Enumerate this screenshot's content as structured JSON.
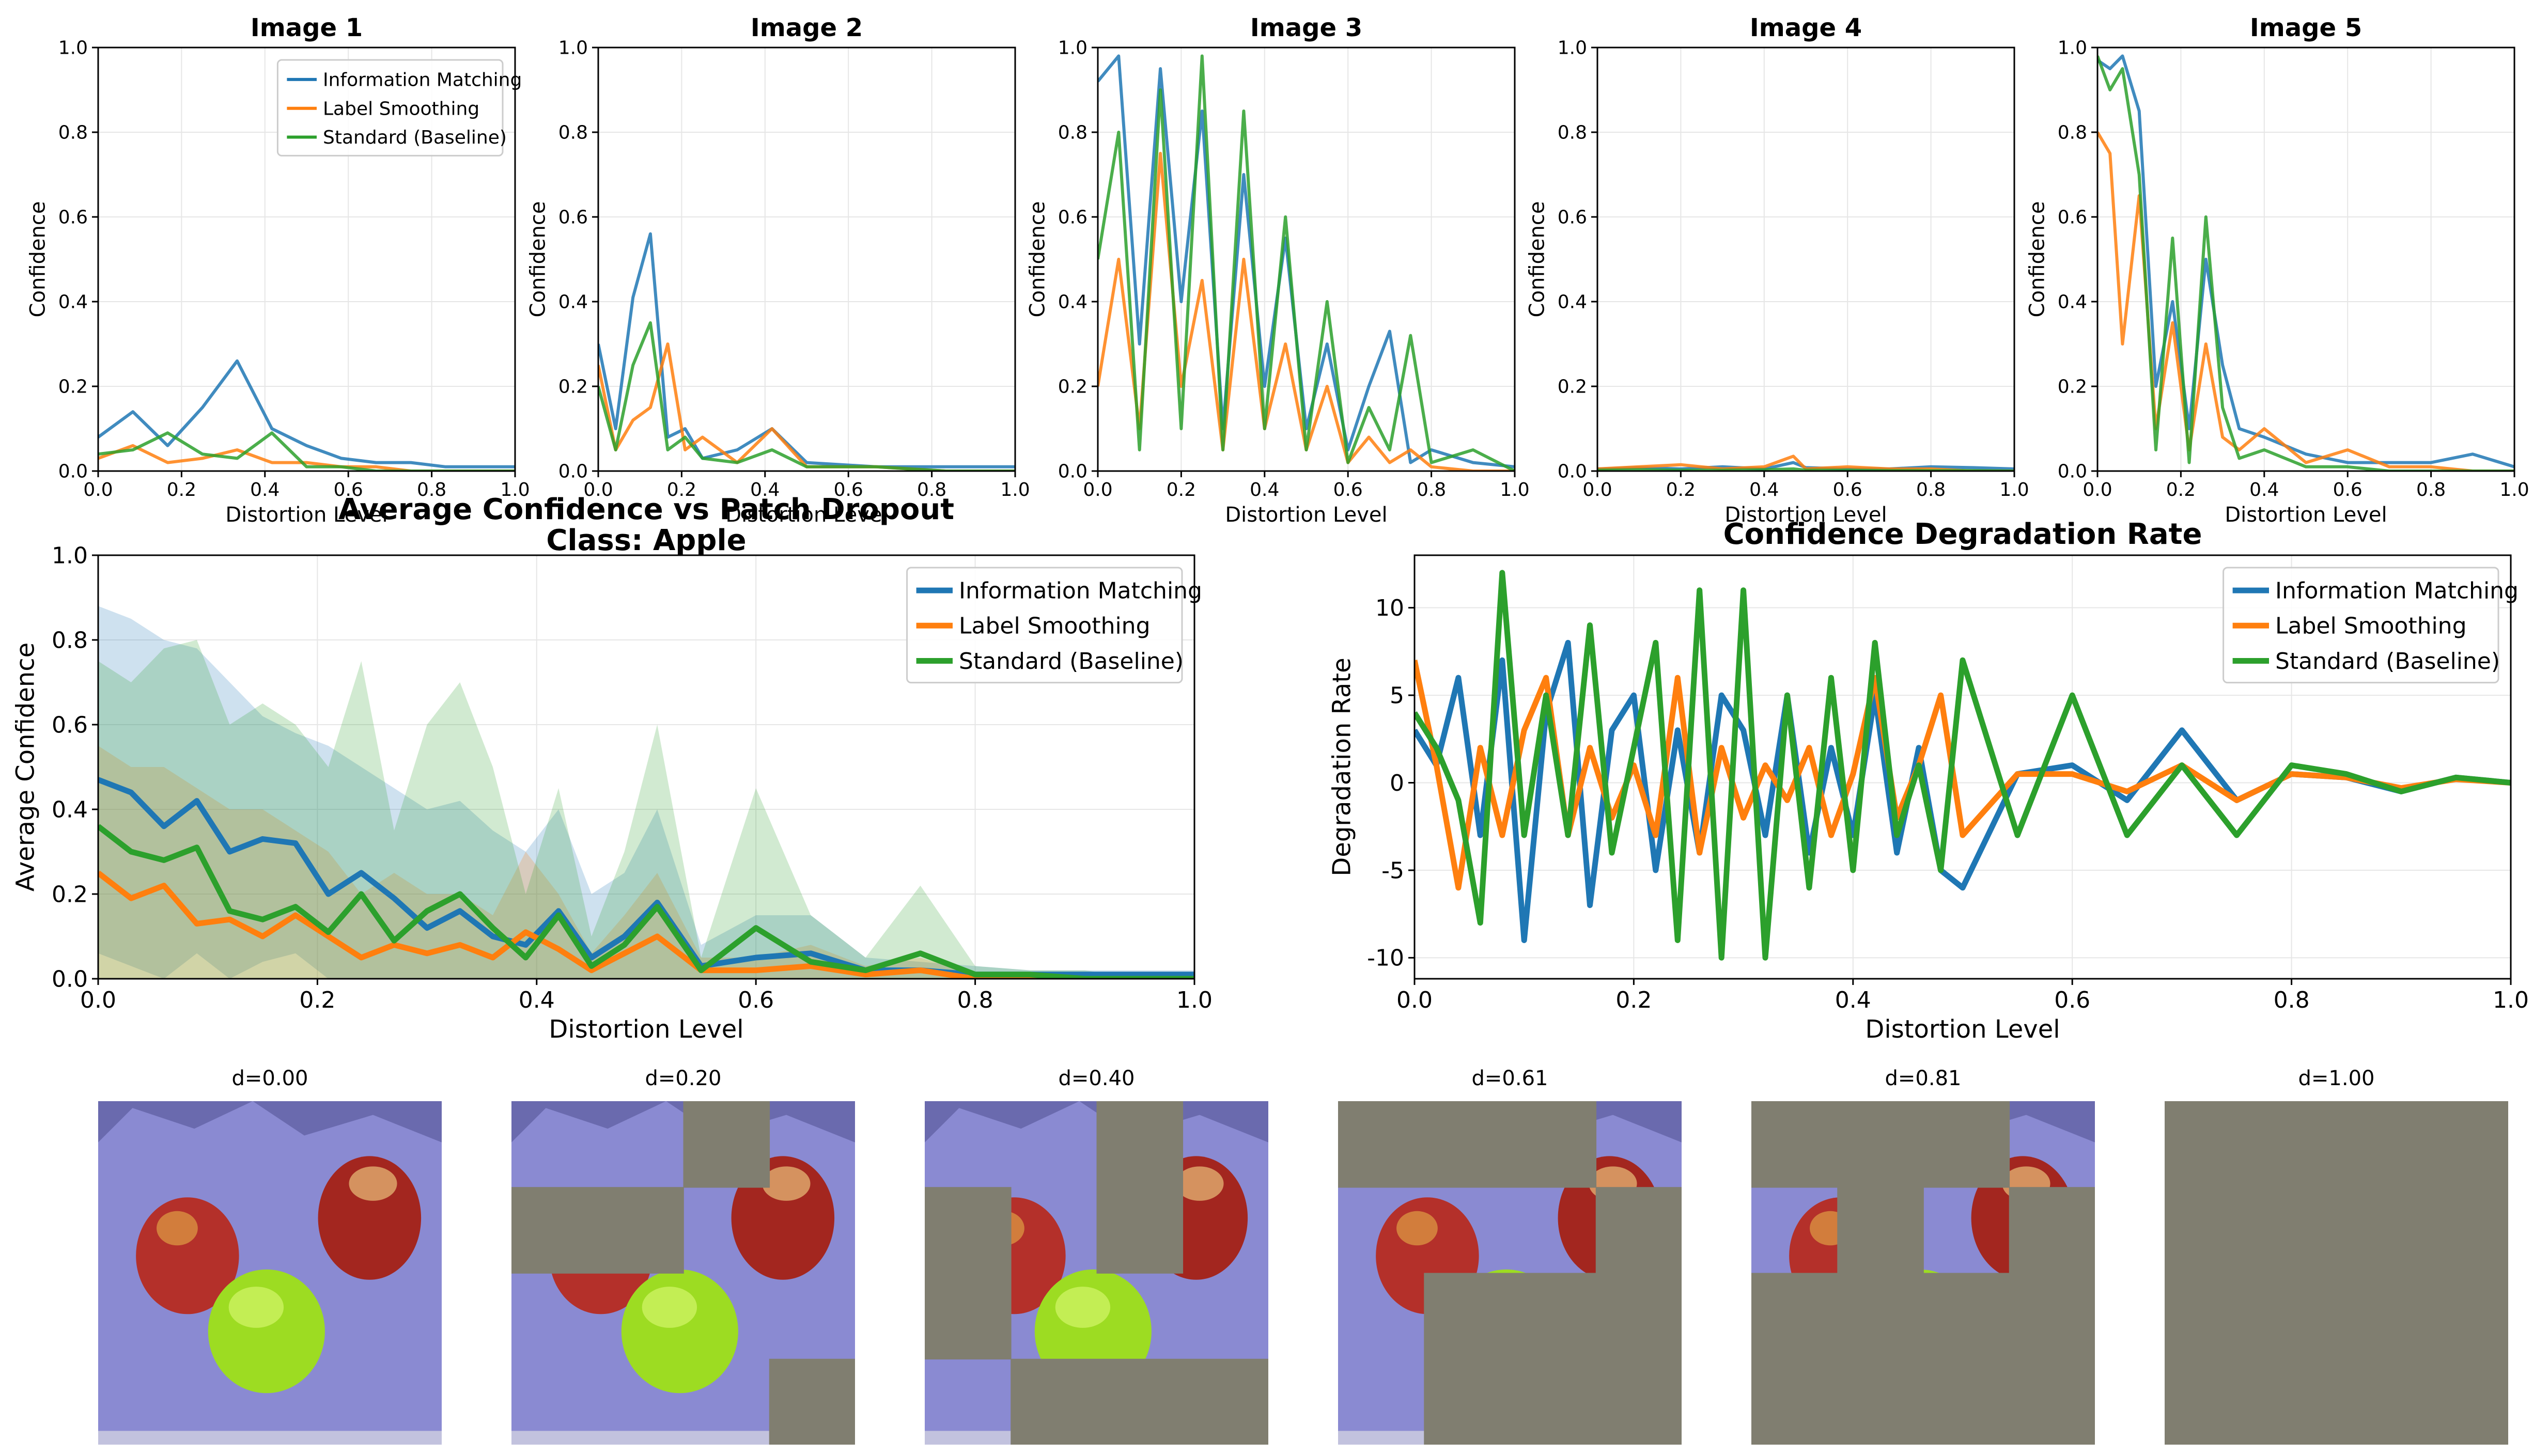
{
  "colors": {
    "information_matching": "#1f77b4",
    "label_smoothing": "#ff7f0e",
    "standard": "#2ca02c",
    "grid": "#e6e6e6",
    "mask": "#807e70",
    "background_cloth": "#8a8ad2",
    "apple_red": "#b4302a",
    "apple_green": "#9ddc22"
  },
  "legend_labels": [
    "Information Matching",
    "Label Smoothing",
    "Standard (Baseline)"
  ],
  "chart_data": [
    {
      "id": "image-1",
      "type": "line",
      "title": "Image 1",
      "xlabel": "Distortion Level",
      "ylabel": "Confidence",
      "xlim": [
        0,
        1
      ],
      "ylim": [
        0,
        1
      ],
      "xticks": [
        "0.0",
        "0.2",
        "0.4",
        "0.6",
        "0.8",
        "1.0"
      ],
      "yticks": [
        "0.0",
        "0.2",
        "0.4",
        "0.6",
        "0.8",
        "1.0"
      ],
      "grid": true,
      "legend": "top-right",
      "x": [
        0,
        0.0833,
        0.1667,
        0.25,
        0.3333,
        0.4167,
        0.5,
        0.5833,
        0.6667,
        0.75,
        0.8333,
        0.9167,
        1.0
      ],
      "series": [
        {
          "name": "Information Matching",
          "values": [
            0.08,
            0.14,
            0.06,
            0.15,
            0.26,
            0.1,
            0.06,
            0.03,
            0.02,
            0.02,
            0.01,
            0.01,
            0.01
          ]
        },
        {
          "name": "Label Smoothing",
          "values": [
            0.03,
            0.06,
            0.02,
            0.03,
            0.05,
            0.02,
            0.02,
            0.01,
            0.01,
            0.0,
            0.0,
            0.0,
            0.0
          ]
        },
        {
          "name": "Standard (Baseline)",
          "values": [
            0.04,
            0.05,
            0.09,
            0.04,
            0.03,
            0.09,
            0.01,
            0.01,
            0.0,
            0.0,
            0.0,
            0.0,
            0.0
          ]
        }
      ]
    },
    {
      "id": "image-2",
      "type": "line",
      "title": "Image 2",
      "xlabel": "Distortion Level",
      "ylabel": "Confidence",
      "xlim": [
        0,
        1
      ],
      "ylim": [
        0,
        1
      ],
      "xticks": [
        "0.0",
        "0.2",
        "0.4",
        "0.6",
        "0.8",
        "1.0"
      ],
      "yticks": [
        "0.0",
        "0.2",
        "0.4",
        "0.6",
        "0.8",
        "1.0"
      ],
      "grid": true,
      "x": [
        0,
        0.0417,
        0.0833,
        0.125,
        0.1667,
        0.2083,
        0.25,
        0.3333,
        0.4167,
        0.5,
        0.6667,
        0.8333,
        1.0
      ],
      "series": [
        {
          "name": "Information Matching",
          "values": [
            0.3,
            0.1,
            0.41,
            0.56,
            0.08,
            0.1,
            0.03,
            0.05,
            0.1,
            0.02,
            0.01,
            0.01,
            0.01
          ]
        },
        {
          "name": "Label Smoothing",
          "values": [
            0.25,
            0.05,
            0.12,
            0.15,
            0.3,
            0.05,
            0.08,
            0.02,
            0.1,
            0.01,
            0.01,
            0.0,
            0.0
          ]
        },
        {
          "name": "Standard (Baseline)",
          "values": [
            0.2,
            0.05,
            0.25,
            0.35,
            0.05,
            0.08,
            0.03,
            0.02,
            0.05,
            0.01,
            0.01,
            0.0,
            0.0
          ]
        }
      ]
    },
    {
      "id": "image-3",
      "type": "line",
      "title": "Image 3",
      "xlabel": "Distortion Level",
      "ylabel": "Confidence",
      "xlim": [
        0,
        1
      ],
      "ylim": [
        0,
        1
      ],
      "xticks": [
        "0.0",
        "0.2",
        "0.4",
        "0.6",
        "0.8",
        "1.0"
      ],
      "yticks": [
        "0.0",
        "0.2",
        "0.4",
        "0.6",
        "0.8",
        "1.0"
      ],
      "grid": true,
      "x": [
        0,
        0.05,
        0.1,
        0.15,
        0.2,
        0.25,
        0.3,
        0.35,
        0.4,
        0.45,
        0.5,
        0.55,
        0.6,
        0.65,
        0.7,
        0.75,
        0.8,
        0.9,
        1.0
      ],
      "series": [
        {
          "name": "Information Matching",
          "values": [
            0.92,
            0.98,
            0.3,
            0.95,
            0.4,
            0.85,
            0.1,
            0.7,
            0.2,
            0.55,
            0.1,
            0.3,
            0.05,
            0.2,
            0.33,
            0.02,
            0.05,
            0.02,
            0.01
          ]
        },
        {
          "name": "Label Smoothing",
          "values": [
            0.2,
            0.5,
            0.1,
            0.75,
            0.2,
            0.45,
            0.05,
            0.5,
            0.1,
            0.3,
            0.05,
            0.2,
            0.02,
            0.08,
            0.02,
            0.05,
            0.01,
            0.0,
            0.0
          ]
        },
        {
          "name": "Standard (Baseline)",
          "values": [
            0.5,
            0.8,
            0.05,
            0.9,
            0.1,
            0.98,
            0.05,
            0.85,
            0.1,
            0.6,
            0.05,
            0.4,
            0.02,
            0.15,
            0.05,
            0.32,
            0.02,
            0.05,
            0.0
          ]
        }
      ]
    },
    {
      "id": "image-4",
      "type": "line",
      "title": "Image 4",
      "xlabel": "Distortion Level",
      "ylabel": "Confidence",
      "xlim": [
        0,
        1
      ],
      "ylim": [
        0,
        1
      ],
      "xticks": [
        "0.0",
        "0.2",
        "0.4",
        "0.6",
        "0.8",
        "1.0"
      ],
      "yticks": [
        "0.0",
        "0.2",
        "0.4",
        "0.6",
        "0.8",
        "1.0"
      ],
      "grid": true,
      "x": [
        0,
        0.1,
        0.2,
        0.3,
        0.4,
        0.47,
        0.5,
        0.6,
        0.7,
        0.8,
        0.9,
        1.0
      ],
      "series": [
        {
          "name": "Information Matching",
          "values": [
            0.005,
            0.008,
            0.005,
            0.01,
            0.005,
            0.02,
            0.008,
            0.005,
            0.005,
            0.01,
            0.008,
            0.005
          ]
        },
        {
          "name": "Label Smoothing",
          "values": [
            0.005,
            0.01,
            0.015,
            0.005,
            0.01,
            0.035,
            0.005,
            0.01,
            0.005,
            0.005,
            0.0,
            0.0
          ]
        },
        {
          "name": "Standard (Baseline)",
          "values": [
            0.002,
            0.003,
            0.002,
            0.002,
            0.003,
            0.005,
            0.002,
            0.002,
            0.001,
            0.001,
            0.001,
            0.0
          ]
        }
      ]
    },
    {
      "id": "image-5",
      "type": "line",
      "title": "Image 5",
      "xlabel": "Distortion Level",
      "ylabel": "Confidence",
      "xlim": [
        0,
        1
      ],
      "ylim": [
        0,
        1
      ],
      "xticks": [
        "0.0",
        "0.2",
        "0.4",
        "0.6",
        "0.8",
        "1.0"
      ],
      "yticks": [
        "0.0",
        "0.2",
        "0.4",
        "0.6",
        "0.8",
        "1.0"
      ],
      "grid": true,
      "x": [
        0,
        0.03,
        0.06,
        0.1,
        0.14,
        0.18,
        0.22,
        0.26,
        0.3,
        0.34,
        0.4,
        0.5,
        0.6,
        0.7,
        0.8,
        0.9,
        1.0
      ],
      "series": [
        {
          "name": "Information Matching",
          "values": [
            0.97,
            0.95,
            0.98,
            0.85,
            0.2,
            0.4,
            0.1,
            0.5,
            0.25,
            0.1,
            0.08,
            0.04,
            0.02,
            0.02,
            0.02,
            0.04,
            0.01
          ]
        },
        {
          "name": "Label Smoothing",
          "values": [
            0.8,
            0.75,
            0.3,
            0.65,
            0.1,
            0.35,
            0.05,
            0.3,
            0.08,
            0.05,
            0.1,
            0.02,
            0.05,
            0.01,
            0.01,
            0.0,
            0.0
          ]
        },
        {
          "name": "Standard (Baseline)",
          "values": [
            0.98,
            0.9,
            0.95,
            0.7,
            0.05,
            0.55,
            0.02,
            0.6,
            0.15,
            0.03,
            0.05,
            0.01,
            0.01,
            0.0,
            0.0,
            0.0,
            0.0
          ]
        }
      ]
    },
    {
      "id": "average-confidence",
      "type": "area",
      "title": "Average Confidence vs Patch Dropout",
      "subtitle": "Class: Apple",
      "xlabel": "Distortion Level",
      "ylabel": "Average Confidence",
      "xlim": [
        0,
        1
      ],
      "ylim": [
        0,
        1
      ],
      "xticks": [
        "0.0",
        "0.2",
        "0.4",
        "0.6",
        "0.8",
        "1.0"
      ],
      "yticks": [
        "0.0",
        "0.2",
        "0.4",
        "0.6",
        "0.8",
        "1.0"
      ],
      "grid": true,
      "legend": "top-right",
      "x": [
        0,
        0.03,
        0.06,
        0.09,
        0.12,
        0.15,
        0.18,
        0.21,
        0.24,
        0.27,
        0.3,
        0.33,
        0.36,
        0.39,
        0.42,
        0.45,
        0.48,
        0.51,
        0.55,
        0.6,
        0.65,
        0.7,
        0.75,
        0.8,
        0.85,
        0.9,
        0.95,
        1.0
      ],
      "series": [
        {
          "name": "Information Matching",
          "values": [
            0.47,
            0.44,
            0.36,
            0.42,
            0.3,
            0.33,
            0.32,
            0.2,
            0.25,
            0.19,
            0.12,
            0.16,
            0.1,
            0.08,
            0.16,
            0.05,
            0.1,
            0.18,
            0.03,
            0.05,
            0.06,
            0.02,
            0.02,
            0.01,
            0.01,
            0.01,
            0.01,
            0.01
          ],
          "upper": [
            0.88,
            0.85,
            0.8,
            0.78,
            0.7,
            0.62,
            0.58,
            0.55,
            0.5,
            0.45,
            0.4,
            0.42,
            0.35,
            0.3,
            0.4,
            0.2,
            0.25,
            0.4,
            0.08,
            0.15,
            0.15,
            0.05,
            0.04,
            0.03,
            0.02,
            0.02,
            0.02,
            0.02
          ],
          "lower": [
            0.06,
            0.03,
            0.0,
            0.06,
            0.0,
            0.04,
            0.06,
            0.0,
            0.0,
            0.0,
            0.0,
            0.0,
            0.0,
            0.0,
            0.0,
            0.0,
            0.0,
            0.0,
            0.0,
            0.0,
            0.0,
            0.0,
            0.0,
            0.0,
            0.0,
            0.0,
            0.0,
            0.0
          ]
        },
        {
          "name": "Label Smoothing",
          "values": [
            0.25,
            0.19,
            0.22,
            0.13,
            0.14,
            0.1,
            0.15,
            0.1,
            0.05,
            0.08,
            0.06,
            0.08,
            0.05,
            0.11,
            0.07,
            0.02,
            0.06,
            0.1,
            0.02,
            0.02,
            0.03,
            0.01,
            0.02,
            0.0,
            0.0,
            0.0,
            0.0,
            0.0
          ],
          "upper": [
            0.55,
            0.5,
            0.5,
            0.45,
            0.4,
            0.4,
            0.35,
            0.3,
            0.2,
            0.25,
            0.2,
            0.2,
            0.15,
            0.3,
            0.2,
            0.06,
            0.15,
            0.25,
            0.05,
            0.05,
            0.08,
            0.03,
            0.05,
            0.01,
            0.01,
            0.0,
            0.0,
            0.0
          ],
          "lower": [
            0.0,
            0.0,
            0.0,
            0.0,
            0.0,
            0.0,
            0.0,
            0.0,
            0.0,
            0.0,
            0.0,
            0.0,
            0.0,
            0.0,
            0.0,
            0.0,
            0.0,
            0.0,
            0.0,
            0.0,
            0.0,
            0.0,
            0.0,
            0.0,
            0.0,
            0.0,
            0.0,
            0.0
          ]
        },
        {
          "name": "Standard (Baseline)",
          "values": [
            0.36,
            0.3,
            0.28,
            0.31,
            0.16,
            0.14,
            0.17,
            0.11,
            0.2,
            0.09,
            0.16,
            0.2,
            0.12,
            0.05,
            0.15,
            0.03,
            0.08,
            0.17,
            0.02,
            0.12,
            0.04,
            0.02,
            0.06,
            0.01,
            0.01,
            0.0,
            0.0,
            0.0
          ],
          "upper": [
            0.75,
            0.7,
            0.78,
            0.8,
            0.6,
            0.65,
            0.6,
            0.5,
            0.75,
            0.35,
            0.6,
            0.7,
            0.5,
            0.2,
            0.45,
            0.1,
            0.3,
            0.6,
            0.05,
            0.45,
            0.15,
            0.05,
            0.22,
            0.03,
            0.02,
            0.02,
            0.0,
            0.0
          ],
          "lower": [
            0.0,
            0.0,
            0.0,
            0.0,
            0.0,
            0.0,
            0.0,
            0.0,
            0.0,
            0.0,
            0.0,
            0.0,
            0.0,
            0.0,
            0.0,
            0.0,
            0.0,
            0.0,
            0.0,
            0.0,
            0.0,
            0.0,
            0.0,
            0.0,
            0.0,
            0.0,
            0.0,
            0.0
          ]
        }
      ]
    },
    {
      "id": "degradation-rate",
      "type": "line",
      "title": "Confidence Degradation Rate",
      "xlabel": "Distortion Level",
      "ylabel": "Degradation Rate",
      "xlim": [
        0,
        1
      ],
      "ylim": [
        -11.2,
        13
      ],
      "xticks": [
        "0.0",
        "0.2",
        "0.4",
        "0.6",
        "0.8",
        "1.0"
      ],
      "yticks": [
        "-10",
        "-5",
        "0",
        "5",
        "10"
      ],
      "grid": true,
      "legend": "top-right",
      "x": [
        0,
        0.02,
        0.04,
        0.06,
        0.08,
        0.1,
        0.12,
        0.14,
        0.16,
        0.18,
        0.2,
        0.22,
        0.24,
        0.26,
        0.28,
        0.3,
        0.32,
        0.34,
        0.36,
        0.38,
        0.4,
        0.42,
        0.44,
        0.46,
        0.48,
        0.5,
        0.55,
        0.6,
        0.65,
        0.7,
        0.75,
        0.8,
        0.85,
        0.9,
        0.95,
        1.0
      ],
      "series": [
        {
          "name": "Information Matching",
          "values": [
            3,
            1,
            6,
            -3,
            7,
            -9,
            4,
            8,
            -7,
            3,
            5,
            -5,
            3,
            -4,
            5,
            3,
            -3,
            5,
            -4,
            2,
            -3,
            5,
            -4,
            2,
            -5,
            -6,
            0.5,
            1,
            -1,
            3,
            -1,
            0.5,
            0.3,
            -0.5,
            0.3,
            0
          ]
        },
        {
          "name": "Label Smoothing",
          "values": [
            7,
            1,
            -6,
            2,
            -3,
            3,
            6,
            -3,
            2,
            -2,
            1,
            -3,
            6,
            -4,
            2,
            -2,
            1,
            -1,
            2,
            -3,
            0.5,
            6,
            -2,
            1,
            5,
            -3,
            0.5,
            0.5,
            -0.5,
            1,
            -1,
            0.5,
            0.3,
            -0.3,
            0.2,
            0
          ]
        },
        {
          "name": "Standard (Baseline)",
          "values": [
            4,
            2,
            -1,
            -8,
            12,
            -3,
            5,
            -3,
            9,
            -4,
            2,
            8,
            -9,
            11,
            -10,
            11,
            -10,
            5,
            -6,
            6,
            -5,
            8,
            -3,
            1,
            -5,
            7,
            -3,
            5,
            -3,
            1,
            -3,
            1,
            0.5,
            -0.5,
            0.3,
            0
          ]
        }
      ]
    }
  ],
  "patch_tiles": [
    {
      "title": "d=0.00",
      "distortion": 0.0
    },
    {
      "title": "d=0.20",
      "distortion": 0.2
    },
    {
      "title": "d=0.40",
      "distortion": 0.4
    },
    {
      "title": "d=0.61",
      "distortion": 0.61
    },
    {
      "title": "d=0.81",
      "distortion": 0.81
    },
    {
      "title": "d=1.00",
      "distortion": 1.0
    }
  ]
}
